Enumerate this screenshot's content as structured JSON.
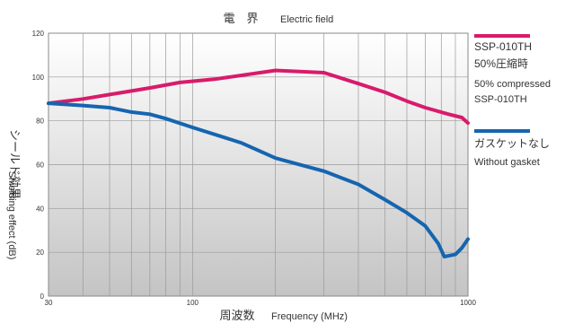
{
  "chart_data": {
    "type": "line",
    "title": "電　界",
    "subtitle": "Electric field",
    "xlabel": "周波数",
    "xlabel_en": "Frequency (MHz)",
    "ylabel": "シールド効果",
    "ylabel_en": "Shielding effect (dB)",
    "x_scale": "log",
    "xlim": [
      30,
      1000
    ],
    "ylim": [
      0,
      120
    ],
    "x_ticks": [
      "30",
      "100",
      "1000"
    ],
    "y_ticks": [
      "0",
      "20",
      "40",
      "60",
      "80",
      "100",
      "120"
    ],
    "grid": true,
    "legend_position": "right",
    "series": [
      {
        "name": "SSP-010TH 50%圧縮時",
        "legend_lines": [
          "SSP-010TH",
          "50%圧縮時",
          "50% compressed",
          "SSP-010TH"
        ],
        "color": "#d81b6b",
        "points": [
          [
            30,
            88
          ],
          [
            40,
            90
          ],
          [
            50,
            92
          ],
          [
            70,
            95
          ],
          [
            90,
            97.5
          ],
          [
            120,
            99
          ],
          [
            200,
            103
          ],
          [
            300,
            102
          ],
          [
            400,
            97
          ],
          [
            500,
            93
          ],
          [
            600,
            89
          ],
          [
            700,
            86
          ],
          [
            850,
            83
          ],
          [
            950,
            81.5
          ],
          [
            1000,
            79
          ]
        ]
      },
      {
        "name": "ガスケットなし Without gasket",
        "legend_lines": [
          "ガスケットなし",
          "Without gasket"
        ],
        "color": "#1565b0",
        "points": [
          [
            30,
            88
          ],
          [
            40,
            87
          ],
          [
            50,
            86
          ],
          [
            60,
            84
          ],
          [
            70,
            83
          ],
          [
            80,
            81
          ],
          [
            100,
            77
          ],
          [
            150,
            70
          ],
          [
            200,
            63
          ],
          [
            300,
            57
          ],
          [
            400,
            51
          ],
          [
            500,
            44
          ],
          [
            600,
            38
          ],
          [
            700,
            32
          ],
          [
            780,
            24
          ],
          [
            820,
            18
          ],
          [
            900,
            19
          ],
          [
            950,
            22
          ],
          [
            1000,
            26
          ]
        ]
      }
    ]
  }
}
